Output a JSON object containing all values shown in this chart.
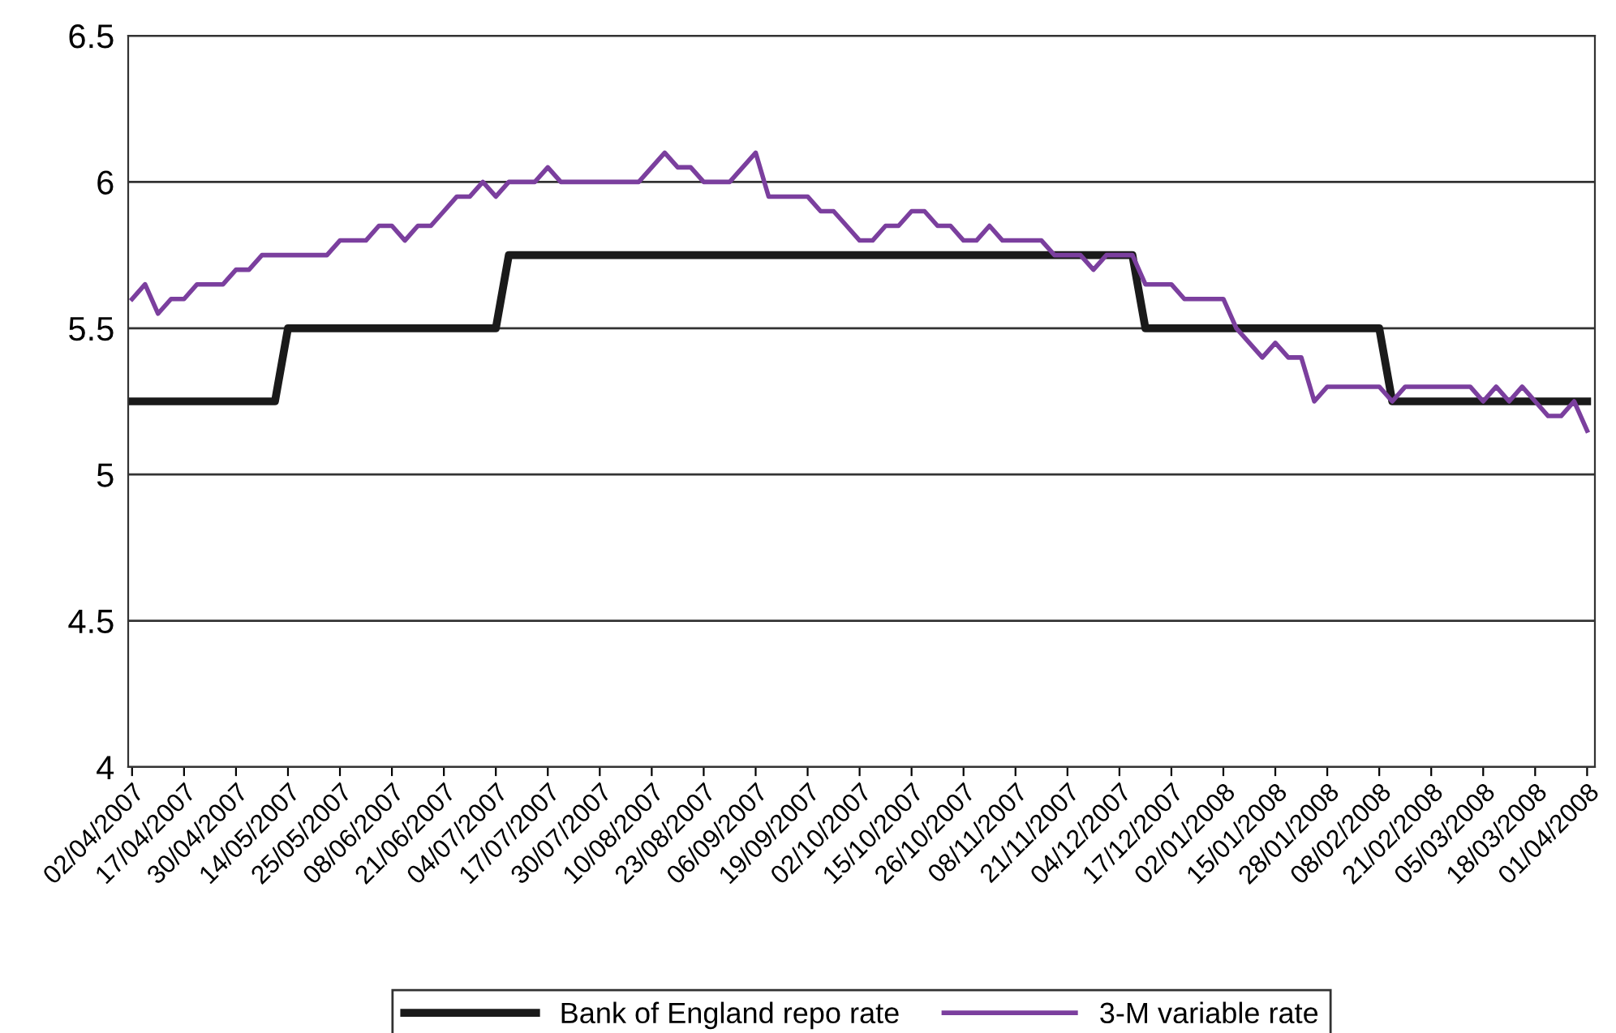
{
  "chart_data": {
    "type": "line",
    "categories": [
      "02/04/2007",
      null,
      null,
      null,
      "17/04/2007",
      null,
      null,
      null,
      "30/04/2007",
      null,
      null,
      null,
      "14/05/2007",
      null,
      null,
      null,
      "25/05/2007",
      null,
      null,
      null,
      "08/06/2007",
      null,
      null,
      null,
      "21/06/2007",
      null,
      null,
      null,
      "04/07/2007",
      null,
      null,
      null,
      "17/07/2007",
      null,
      null,
      null,
      "30/07/2007",
      null,
      null,
      null,
      "10/08/2007",
      null,
      null,
      null,
      "23/08/2007",
      null,
      null,
      null,
      "06/09/2007",
      null,
      null,
      null,
      "19/09/2007",
      null,
      null,
      null,
      "02/10/2007",
      null,
      null,
      null,
      "15/10/2007",
      null,
      null,
      null,
      "26/10/2007",
      null,
      null,
      null,
      "08/11/2007",
      null,
      null,
      null,
      "21/11/2007",
      null,
      null,
      null,
      "04/12/2007",
      null,
      null,
      null,
      "17/12/2007",
      null,
      null,
      null,
      "02/01/2008",
      null,
      null,
      null,
      "15/01/2008",
      null,
      null,
      null,
      "28/01/2008",
      null,
      null,
      null,
      "08/02/2008",
      null,
      null,
      null,
      "21/02/2008",
      null,
      null,
      null,
      "05/03/2008",
      null,
      null,
      null,
      "18/03/2008",
      null,
      null,
      null,
      "01/04/2008"
    ],
    "series": [
      {
        "name": "Bank of England repo rate",
        "color": "#1a1a1a",
        "values": [
          5.25,
          5.25,
          5.25,
          5.25,
          5.25,
          5.25,
          5.25,
          5.25,
          5.25,
          5.25,
          5.25,
          5.25,
          5.5,
          5.5,
          5.5,
          5.5,
          5.5,
          5.5,
          5.5,
          5.5,
          5.5,
          5.5,
          5.5,
          5.5,
          5.5,
          5.5,
          5.5,
          5.5,
          5.5,
          5.75,
          5.75,
          5.75,
          5.75,
          5.75,
          5.75,
          5.75,
          5.75,
          5.75,
          5.75,
          5.75,
          5.75,
          5.75,
          5.75,
          5.75,
          5.75,
          5.75,
          5.75,
          5.75,
          5.75,
          5.75,
          5.75,
          5.75,
          5.75,
          5.75,
          5.75,
          5.75,
          5.75,
          5.75,
          5.75,
          5.75,
          5.75,
          5.75,
          5.75,
          5.75,
          5.75,
          5.75,
          5.75,
          5.75,
          5.75,
          5.75,
          5.75,
          5.75,
          5.75,
          5.75,
          5.75,
          5.75,
          5.75,
          5.75,
          5.5,
          5.5,
          5.5,
          5.5,
          5.5,
          5.5,
          5.5,
          5.5,
          5.5,
          5.5,
          5.5,
          5.5,
          5.5,
          5.5,
          5.5,
          5.5,
          5.5,
          5.5,
          5.5,
          5.25,
          5.25,
          5.25,
          5.25,
          5.25,
          5.25,
          5.25,
          5.25,
          5.25,
          5.25,
          5.25,
          5.25,
          5.25,
          5.25,
          5.25,
          5.25
        ]
      },
      {
        "name": "3-M variable rate",
        "color": "#7b3f9e",
        "values": [
          5.6,
          5.65,
          5.55,
          5.6,
          5.6,
          5.65,
          5.65,
          5.65,
          5.7,
          5.7,
          5.75,
          5.75,
          5.75,
          5.75,
          5.75,
          5.75,
          5.8,
          5.8,
          5.8,
          5.85,
          5.85,
          5.8,
          5.85,
          5.85,
          5.9,
          5.95,
          5.95,
          6.0,
          5.95,
          6.0,
          6.0,
          6.0,
          6.05,
          6.0,
          6.0,
          6.0,
          6.0,
          6.0,
          6.0,
          6.0,
          6.05,
          6.1,
          6.05,
          6.05,
          6.0,
          6.0,
          6.0,
          6.05,
          6.1,
          5.95,
          5.95,
          5.95,
          5.95,
          5.9,
          5.9,
          5.85,
          5.8,
          5.8,
          5.85,
          5.85,
          5.9,
          5.9,
          5.85,
          5.85,
          5.8,
          5.8,
          5.85,
          5.8,
          5.8,
          5.8,
          5.8,
          5.75,
          5.75,
          5.75,
          5.7,
          5.75,
          5.75,
          5.75,
          5.65,
          5.65,
          5.65,
          5.6,
          5.6,
          5.6,
          5.6,
          5.5,
          5.45,
          5.4,
          5.45,
          5.4,
          5.4,
          5.25,
          5.3,
          5.3,
          5.3,
          5.3,
          5.3,
          5.25,
          5.3,
          5.3,
          5.3,
          5.3,
          5.3,
          5.3,
          5.25,
          5.3,
          5.25,
          5.3,
          5.25,
          5.2,
          5.2,
          5.25,
          5.15
        ]
      }
    ],
    "ylim": [
      4,
      6.5
    ],
    "yticks": [
      4,
      4.5,
      5,
      5.5,
      6,
      6.5
    ],
    "grid": "y",
    "legend": "bottom",
    "marker": "none",
    "line_style": "solid"
  }
}
